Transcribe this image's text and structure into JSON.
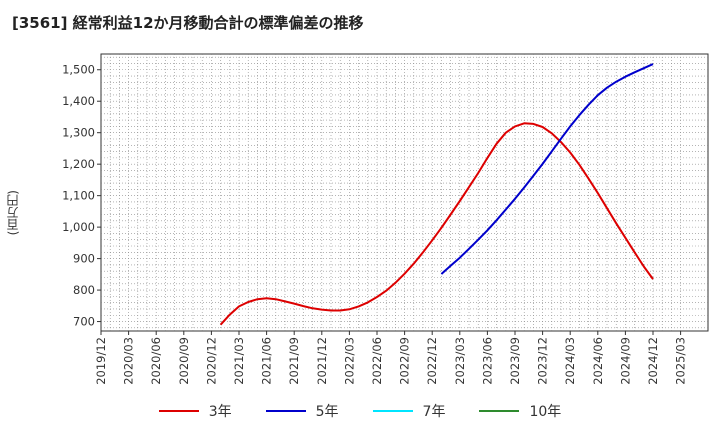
{
  "chart_data": {
    "type": "line",
    "title": "[3561]  経常利益12か月移動合計の標準偏差の推移",
    "ylabel": "(百万円)",
    "xlabel": "",
    "ylim": [
      670,
      1550
    ],
    "yticks": [
      700,
      800,
      900,
      1000,
      1100,
      1200,
      1300,
      1400,
      1500
    ],
    "ytick_labels": [
      "700",
      "800",
      "900",
      "1,000",
      "1,100",
      "1,200",
      "1,300",
      "1,400",
      "1,500"
    ],
    "xticks": [
      "2019/12",
      "2020/03",
      "2020/06",
      "2020/09",
      "2020/12",
      "2021/03",
      "2021/06",
      "2021/09",
      "2021/12",
      "2022/03",
      "2022/06",
      "2022/09",
      "2022/12",
      "2023/03",
      "2023/06",
      "2023/09",
      "2023/12",
      "2024/03",
      "2024/06",
      "2024/09",
      "2024/12",
      "2025/03"
    ],
    "grid": true,
    "legend_position": "bottom",
    "series": [
      {
        "name": "3年",
        "color": "#dd0000",
        "points": [
          [
            "2021/01",
            690
          ],
          [
            "2021/02",
            722
          ],
          [
            "2021/03",
            748
          ],
          [
            "2021/04",
            762
          ],
          [
            "2021/05",
            771
          ],
          [
            "2021/06",
            774
          ],
          [
            "2021/07",
            771
          ],
          [
            "2021/08",
            764
          ],
          [
            "2021/09",
            757
          ],
          [
            "2021/10",
            749
          ],
          [
            "2021/11",
            742
          ],
          [
            "2021/12",
            738
          ],
          [
            "2022/01",
            735
          ],
          [
            "2022/02",
            735
          ],
          [
            "2022/03",
            739
          ],
          [
            "2022/04",
            748
          ],
          [
            "2022/05",
            761
          ],
          [
            "2022/06",
            778
          ],
          [
            "2022/07",
            798
          ],
          [
            "2022/08",
            823
          ],
          [
            "2022/09",
            852
          ],
          [
            "2022/10",
            884
          ],
          [
            "2022/11",
            920
          ],
          [
            "2022/12",
            958
          ],
          [
            "2023/01",
            998
          ],
          [
            "2023/02",
            1040
          ],
          [
            "2023/03",
            1083
          ],
          [
            "2023/04",
            1127
          ],
          [
            "2023/05",
            1172
          ],
          [
            "2023/06",
            1220
          ],
          [
            "2023/07",
            1265
          ],
          [
            "2023/08",
            1300
          ],
          [
            "2023/09",
            1320
          ],
          [
            "2023/10",
            1330
          ],
          [
            "2023/11",
            1328
          ],
          [
            "2023/12",
            1318
          ],
          [
            "2024/01",
            1298
          ],
          [
            "2024/02",
            1270
          ],
          [
            "2024/03",
            1237
          ],
          [
            "2024/04",
            1198
          ],
          [
            "2024/05",
            1154
          ],
          [
            "2024/06",
            1108
          ],
          [
            "2024/07",
            1060
          ],
          [
            "2024/08",
            1012
          ],
          [
            "2024/09",
            966
          ],
          [
            "2024/10",
            920
          ],
          [
            "2024/11",
            875
          ],
          [
            "2024/12",
            835
          ]
        ]
      },
      {
        "name": "5年",
        "color": "#0000cc",
        "points": [
          [
            "2023/01",
            851
          ],
          [
            "2023/02",
            877
          ],
          [
            "2023/03",
            903
          ],
          [
            "2023/04",
            931
          ],
          [
            "2023/05",
            960
          ],
          [
            "2023/06",
            990
          ],
          [
            "2023/07",
            1022
          ],
          [
            "2023/08",
            1056
          ],
          [
            "2023/09",
            1090
          ],
          [
            "2023/10",
            1126
          ],
          [
            "2023/11",
            1163
          ],
          [
            "2023/12",
            1201
          ],
          [
            "2024/01",
            1241
          ],
          [
            "2024/02",
            1281
          ],
          [
            "2024/03",
            1320
          ],
          [
            "2024/04",
            1356
          ],
          [
            "2024/05",
            1389
          ],
          [
            "2024/06",
            1419
          ],
          [
            "2024/07",
            1443
          ],
          [
            "2024/08",
            1462
          ],
          [
            "2024/09",
            1478
          ],
          [
            "2024/10",
            1492
          ],
          [
            "2024/11",
            1505
          ],
          [
            "2024/12",
            1518
          ]
        ]
      },
      {
        "name": "7年",
        "color": "#00e5ff",
        "points": []
      },
      {
        "name": "10年",
        "color": "#2e8b2e",
        "points": []
      }
    ]
  }
}
